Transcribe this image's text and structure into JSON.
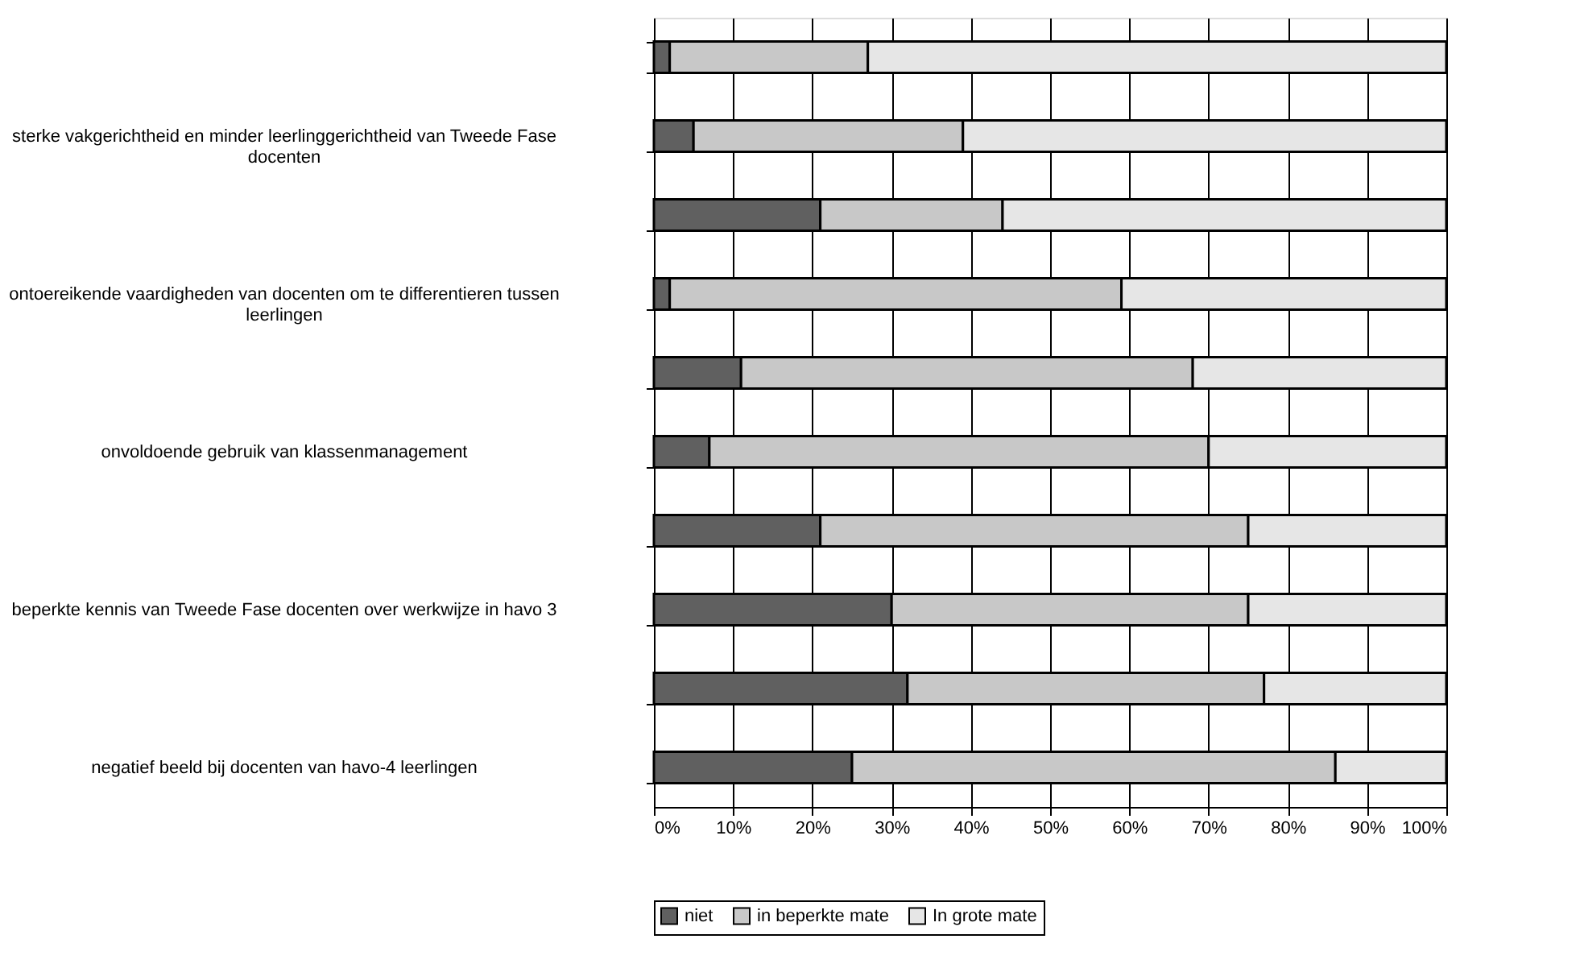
{
  "chart_data": {
    "type": "bar",
    "orientation": "horizontal",
    "stacked": true,
    "categories": [
      null,
      "sterke vakgerichtheid en minder leerlinggerichtheid van Tweede Fase docenten",
      null,
      "ontoereikende vaardigheden van docenten om te differentieren tussen leerlingen",
      null,
      "onvoldoende gebruik van klassenmanagement",
      null,
      "beperkte kennis van Tweede Fase docenten over werkwijze in havo 3",
      null,
      "negatief beeld bij docenten van havo-4 leerlingen"
    ],
    "series": [
      {
        "name": "niet",
        "color": "#606060",
        "values": [
          2,
          5,
          21,
          2,
          11,
          7,
          21,
          30,
          32,
          25
        ]
      },
      {
        "name": "in beperkte mate",
        "color": "#c8c8c8",
        "values": [
          25,
          34,
          23,
          57,
          57,
          63,
          54,
          45,
          45,
          61
        ]
      },
      {
        "name": "In grote mate",
        "color": "#e6e6e6",
        "values": [
          73,
          61,
          56,
          41,
          32,
          30,
          25,
          25,
          23,
          14
        ]
      }
    ],
    "xlim": [
      0,
      100
    ],
    "xticks": [
      {
        "value": 0,
        "label": "0%"
      },
      {
        "value": 10,
        "label": "10%"
      },
      {
        "value": 20,
        "label": "20%"
      },
      {
        "value": 30,
        "label": "30%"
      },
      {
        "value": 40,
        "label": "40%"
      },
      {
        "value": 50,
        "label": "50%"
      },
      {
        "value": 60,
        "label": "60%"
      },
      {
        "value": 70,
        "label": "70%"
      },
      {
        "value": 80,
        "label": "80%"
      },
      {
        "value": 90,
        "label": "90%"
      },
      {
        "value": 100,
        "label": "100%"
      }
    ],
    "grid": "x",
    "legend": "bottom"
  }
}
